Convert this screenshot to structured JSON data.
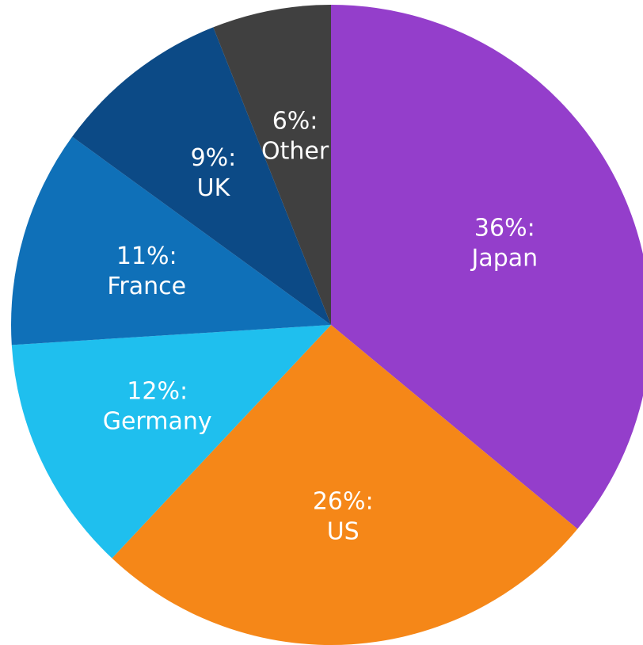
{
  "chart_data": {
    "type": "pie",
    "categories": [
      "Japan",
      "US",
      "Germany",
      "France",
      "UK",
      "Other"
    ],
    "values": [
      36,
      26,
      12,
      11,
      9,
      6
    ],
    "value_labels": [
      "36%:",
      "26%:",
      "12%:",
      "11%:",
      "9%:",
      "6%:"
    ],
    "colors": [
      "#943ecb",
      "#f58718",
      "#1fbfee",
      "#0f70b8",
      "#0c4a86",
      "#404040"
    ]
  }
}
